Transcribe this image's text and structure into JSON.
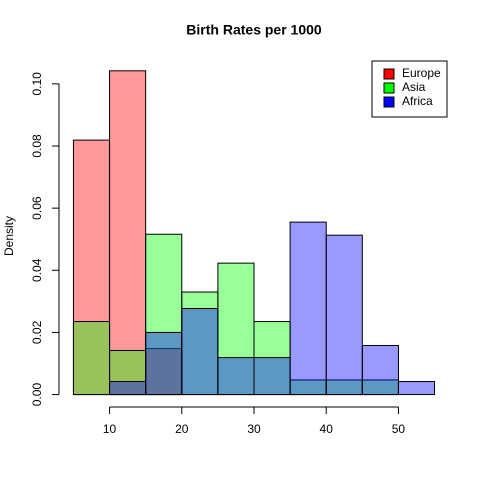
{
  "chart_data": {
    "type": "histogram",
    "title": "Birth Rates per 1000",
    "y_label": "Density",
    "bins": [
      5,
      10,
      15,
      20,
      25,
      30,
      35,
      40,
      45,
      50,
      55
    ],
    "series": [
      {
        "name": "Europe",
        "color": "#ff0000",
        "values": [
          0.0819,
          0.1042,
          0.0148,
          0,
          0,
          0,
          0,
          0,
          0,
          0
        ]
      },
      {
        "name": "Asia",
        "color": "#00ff00",
        "values": [
          0.0235,
          0.0142,
          0.0516,
          0.033,
          0.0423,
          0.0235,
          0.0047,
          0.0047,
          0.0047,
          0
        ]
      },
      {
        "name": "Africa",
        "color": "#0000ff",
        "values": [
          0,
          0.0042,
          0.02,
          0.0277,
          0.0119,
          0.0119,
          0.0555,
          0.0513,
          0.0158,
          0.0042
        ]
      }
    ],
    "fill_opacity": 0.4,
    "xlim": [
      3,
      57
    ],
    "xticks": [
      10,
      20,
      30,
      40,
      50
    ],
    "ylim": [
      -0.004,
      0.108
    ],
    "yticks": [
      {
        "value": 0,
        "label": "0.00"
      },
      {
        "value": 0.02,
        "label": "0.02"
      },
      {
        "value": 0.04,
        "label": "0.04"
      },
      {
        "value": 0.06,
        "label": "0.06"
      },
      {
        "value": 0.08,
        "label": "0.08"
      },
      {
        "value": 0.1,
        "label": "0.10"
      }
    ],
    "legend": "top-right"
  }
}
